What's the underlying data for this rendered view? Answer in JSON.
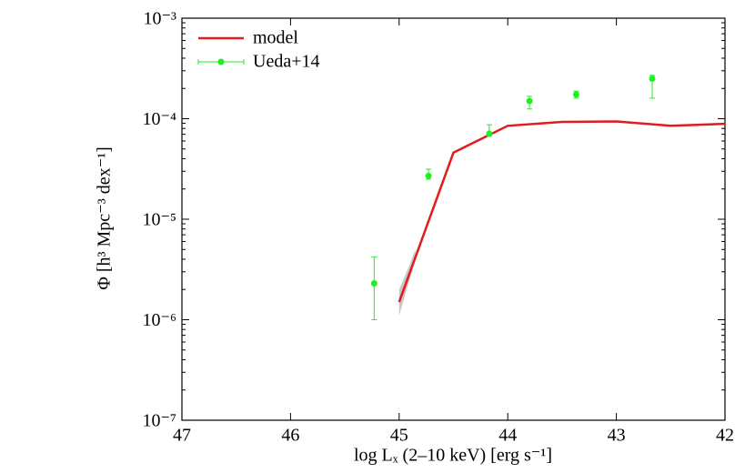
{
  "chart_data": {
    "type": "line",
    "y_axis_label": "Φ [h³ Mpc⁻³ dex⁻¹]",
    "x_axis_label": "log Lₓ (2–10 keV) [erg s⁻¹]",
    "xlim": [
      47,
      42
    ],
    "xticks": [
      47,
      46,
      45,
      44,
      43,
      42
    ],
    "ylim": [
      1e-07,
      0.001
    ],
    "yscale": "log",
    "yticks": [
      {
        "value": 1e-07,
        "label": "10⁻⁷"
      },
      {
        "value": 1e-06,
        "label": "10⁻⁶"
      },
      {
        "value": 1e-05,
        "label": "10⁻⁵"
      },
      {
        "value": 0.0001,
        "label": "10⁻⁴"
      },
      {
        "value": 0.001,
        "label": "10⁻³"
      }
    ],
    "legend": "upper left",
    "series": [
      {
        "name": "model",
        "kind": "line",
        "color": "#e41a1c",
        "x": [
          45,
          44.5,
          44,
          43.5,
          43,
          42.5,
          42
        ],
        "values": [
          1.5e-06,
          4.6e-05,
          8.5e-05,
          9.3e-05,
          9.4e-05,
          8.5e-05,
          8.9e-05
        ],
        "band_x": [
          45,
          44.9,
          44.85
        ],
        "band_lower": [
          1.1e-06,
          2.6e-06,
          4e-06
        ],
        "band_upper": [
          2e-06,
          3.6e-06,
          5e-06
        ],
        "band_color": "#c8c8c8"
      },
      {
        "name": "Ueda+14",
        "kind": "errorbar",
        "color": "#22ee22",
        "x": [
          45.23,
          44.73,
          44.17,
          43.8,
          43.37,
          42.67
        ],
        "values": [
          2.3e-06,
          2.7e-05,
          7.1e-05,
          0.00015,
          0.000174,
          0.00025
        ],
        "lower": [
          1e-06,
          2.5e-05,
          6.7e-05,
          0.000125,
          0.00016,
          0.00016
        ],
        "upper": [
          4.2e-06,
          3.15e-05,
          8.7e-05,
          0.000167,
          0.000188,
          0.00027
        ]
      }
    ]
  }
}
